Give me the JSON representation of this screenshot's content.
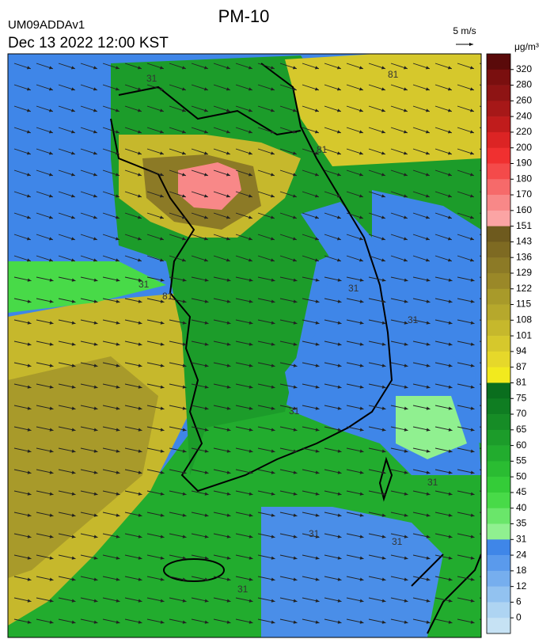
{
  "header": {
    "title": "PM-10",
    "model": "UM09ADDAv1",
    "datetime": "Dec 13 2022 12:00 KST"
  },
  "wind_legend": {
    "label": "5 m/s"
  },
  "colorbar": {
    "unit": "μg/m³",
    "ticks": [
      320,
      280,
      260,
      240,
      220,
      200,
      190,
      180,
      170,
      160,
      151,
      143,
      136,
      129,
      122,
      115,
      108,
      101,
      94,
      87,
      81,
      75,
      70,
      65,
      60,
      55,
      50,
      45,
      40,
      35,
      31,
      24,
      18,
      12,
      6,
      0
    ],
    "colors": [
      "#5a0a0a",
      "#7a0f0f",
      "#8e1414",
      "#a61818",
      "#c01c1c",
      "#dc2424",
      "#f03030",
      "#f44a4a",
      "#f66a6a",
      "#f88888",
      "#fba4a4",
      "#6e5a1e",
      "#7e6a22",
      "#8c7a26",
      "#9a8828",
      "#a89a2a",
      "#b6a82c",
      "#c6b82c",
      "#d6c82c",
      "#e6d82a",
      "#f2ea1e",
      "#0a6e1e",
      "#0f7d22",
      "#168c26",
      "#1c9c2a",
      "#22ac2e",
      "#2abc32",
      "#34cc38",
      "#48da48",
      "#6ae66a",
      "#90f090",
      "#3f86e8",
      "#5a9aec",
      "#76aeee",
      "#92c2f0",
      "#aed4f2",
      "#c6e2f4"
    ]
  },
  "contour_labels": [
    "81",
    "81",
    "31",
    "81",
    "31",
    "31",
    "31",
    "31",
    "31",
    "31",
    "31",
    "31"
  ]
}
